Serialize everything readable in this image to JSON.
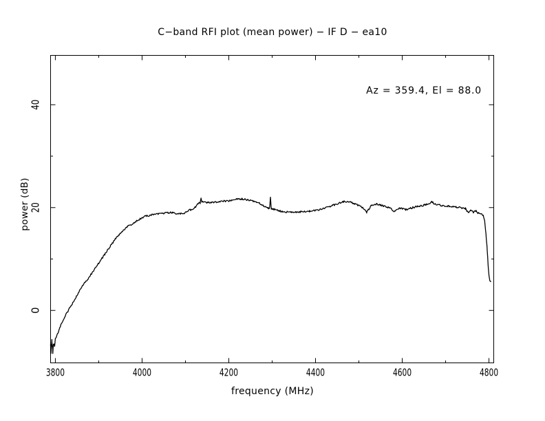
{
  "window": {
    "background_color": "#ffffff",
    "foreground_color": "#000000"
  },
  "chart_data": {
    "type": "line",
    "title": "C−band RFI plot (mean power) − IF D − ea10",
    "xlabel": "frequency (MHz)",
    "ylabel": "power (dB)",
    "annotation": {
      "text": "Az = 359.4, El = 88.0",
      "az": 359.4,
      "el": 88.0,
      "position": "top-right"
    },
    "grid": false,
    "legend": null,
    "line_color": "#000000",
    "x_axis": {
      "lim": [
        3789,
        4811
      ],
      "major_ticks": [
        3800,
        4000,
        4200,
        4400,
        4600,
        4800
      ],
      "tick_labels": [
        "3800",
        "4000",
        "4200",
        "4400",
        "4600",
        "4800"
      ],
      "minor_ticks": [
        3900,
        4100,
        4300,
        4500,
        4700
      ]
    },
    "y_axis": {
      "lim": [
        -10.2,
        49.6
      ],
      "major_ticks": [
        0,
        20,
        40
      ],
      "tick_labels": [
        "0",
        "20",
        "40"
      ],
      "minor_ticks": [
        10,
        30,
        50
      ]
    },
    "noise": {
      "base_amplitude_db": 0.17,
      "start_amplitude_db": 0.55,
      "sample_step_mhz": 1.6,
      "seed": 20107
    },
    "series": [
      {
        "name": "mean power",
        "points": [
          [
            3789,
            -7.0
          ],
          [
            3790,
            -8.3
          ],
          [
            3792,
            -5.6
          ],
          [
            3794,
            -7.9
          ],
          [
            3796,
            -6.2
          ],
          [
            3798,
            -6.8
          ],
          [
            3800,
            -5.8
          ],
          [
            3810,
            -3.4
          ],
          [
            3821,
            -1.3
          ],
          [
            3835,
            0.7
          ],
          [
            3848,
            2.7
          ],
          [
            3860,
            4.5
          ],
          [
            3874,
            6.0
          ],
          [
            3887,
            7.6
          ],
          [
            3900,
            9.2
          ],
          [
            3914,
            10.9
          ],
          [
            3927,
            12.5
          ],
          [
            3939,
            14.0
          ],
          [
            3954,
            15.3
          ],
          [
            3966,
            16.3
          ],
          [
            3979,
            16.9
          ],
          [
            3993,
            17.7
          ],
          [
            4006,
            18.3
          ],
          [
            4019,
            18.5
          ],
          [
            4033,
            18.8
          ],
          [
            4046,
            18.9
          ],
          [
            4060,
            19.0
          ],
          [
            4070,
            19.1
          ],
          [
            4082,
            18.7
          ],
          [
            4096,
            18.9
          ],
          [
            4112,
            19.6
          ],
          [
            4122,
            20.0
          ],
          [
            4128,
            20.8
          ],
          [
            4134,
            20.9
          ],
          [
            4136,
            22.0
          ],
          [
            4138,
            21.1
          ],
          [
            4150,
            21.0
          ],
          [
            4160,
            20.9
          ],
          [
            4180,
            21.2
          ],
          [
            4201,
            21.3
          ],
          [
            4217,
            21.6
          ],
          [
            4228,
            21.7
          ],
          [
            4239,
            21.6
          ],
          [
            4255,
            21.3
          ],
          [
            4271,
            20.8
          ],
          [
            4280,
            20.3
          ],
          [
            4291,
            19.9
          ],
          [
            4294,
            19.9
          ],
          [
            4296,
            22.0
          ],
          [
            4298,
            19.8
          ],
          [
            4307,
            19.6
          ],
          [
            4323,
            19.2
          ],
          [
            4344,
            19.1
          ],
          [
            4366,
            19.2
          ],
          [
            4386,
            19.3
          ],
          [
            4407,
            19.5
          ],
          [
            4423,
            19.9
          ],
          [
            4439,
            20.4
          ],
          [
            4455,
            20.9
          ],
          [
            4466,
            21.2
          ],
          [
            4477,
            21.2
          ],
          [
            4486,
            20.9
          ],
          [
            4497,
            20.5
          ],
          [
            4508,
            20.0
          ],
          [
            4518,
            19.1
          ],
          [
            4529,
            20.4
          ],
          [
            4540,
            20.7
          ],
          [
            4556,
            20.3
          ],
          [
            4572,
            19.9
          ],
          [
            4581,
            19.3
          ],
          [
            4592,
            19.9
          ],
          [
            4608,
            19.6
          ],
          [
            4624,
            20.0
          ],
          [
            4640,
            20.3
          ],
          [
            4652,
            20.5
          ],
          [
            4661,
            20.7
          ],
          [
            4668,
            21.1
          ],
          [
            4676,
            20.7
          ],
          [
            4692,
            20.4
          ],
          [
            4708,
            20.3
          ],
          [
            4724,
            20.1
          ],
          [
            4740,
            19.9
          ],
          [
            4746,
            19.8
          ],
          [
            4753,
            18.9
          ],
          [
            4758,
            19.5
          ],
          [
            4764,
            19.1
          ],
          [
            4770,
            19.4
          ],
          [
            4776,
            18.9
          ],
          [
            4783,
            18.8
          ],
          [
            4787,
            18.5
          ],
          [
            4790,
            17.6
          ],
          [
            4793,
            14.9
          ],
          [
            4796,
            11.8
          ],
          [
            4798,
            8.9
          ],
          [
            4800,
            6.9
          ],
          [
            4802,
            5.9
          ],
          [
            4804,
            5.6
          ]
        ]
      }
    ]
  }
}
